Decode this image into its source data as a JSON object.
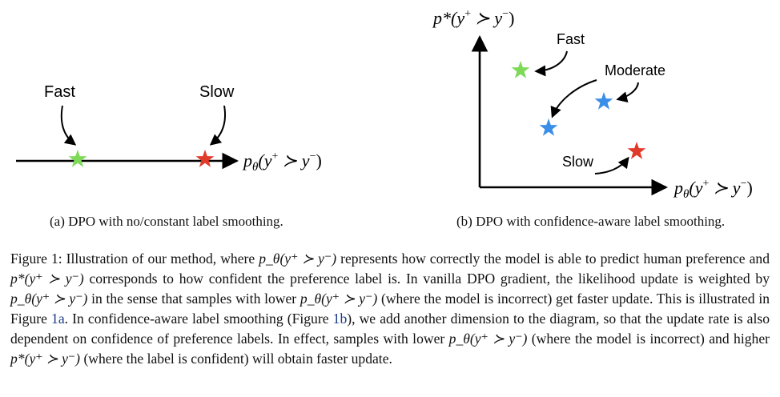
{
  "panel_a": {
    "label_fast": "Fast",
    "label_slow": "Slow",
    "axis_label_p": "p",
    "axis_label_sub": "θ",
    "axis_label_rest": "(y",
    "axis_label_plus": "+",
    "axis_label_succ": " ≻ y",
    "axis_label_minus": "−",
    "axis_label_close": ")",
    "caption": "(a) DPO with no/constant label smoothing."
  },
  "panel_b": {
    "y_axis_p": "p*",
    "y_axis_rest": "(y",
    "y_axis_plus": "+",
    "y_axis_succ": " ≻ y",
    "y_axis_minus": "−",
    "y_axis_close": ")",
    "x_axis_p": "p",
    "x_axis_sub": "θ",
    "x_axis_rest": "(y",
    "x_axis_plus": "+",
    "x_axis_succ": " ≻ y",
    "x_axis_minus": "−",
    "x_axis_close": ")",
    "label_fast": "Fast",
    "label_moderate": "Moderate",
    "label_slow": "Slow",
    "caption": "(b) DPO with confidence-aware label smoothing."
  },
  "colors": {
    "fast_star": "#7ed957",
    "moderate_star": "#3b8ee8",
    "slow_star": "#e03a2a",
    "axis": "#000000",
    "ref_link": "#1a3a8a"
  },
  "caption": {
    "s1": "Figure 1: Illustration of our method, where ",
    "m1": "p_θ(y⁺ ≻ y⁻)",
    "s2": " represents how correctly the model is able to predict human preference and ",
    "m2": "p*(y⁺ ≻ y⁻)",
    "s3": " corresponds to how confident the preference label is. In vanilla DPO gradient, the likelihood update is weighted by ",
    "m3": "p_θ(y⁺ ≻ y⁻)",
    "s4": " in the sense that samples with lower ",
    "m4": "p_θ(y⁺ ≻ y⁻)",
    "s5": " (where the model is incorrect) get faster update. This is illustrated in Figure ",
    "ref1": "1a",
    "s6": ". In confidence-aware label smoothing (Figure ",
    "ref2": "1b",
    "s7": "), we add another dimension to the diagram, so that the update rate is also dependent on confidence of preference labels. In effect, samples with lower ",
    "m5": "p_θ(y⁺ ≻ y⁻)",
    "s8": " (where the model is incorrect) and higher ",
    "m6": "p*(y⁺ ≻ y⁻)",
    "s9": " (where the label is confident) will obtain faster update."
  }
}
